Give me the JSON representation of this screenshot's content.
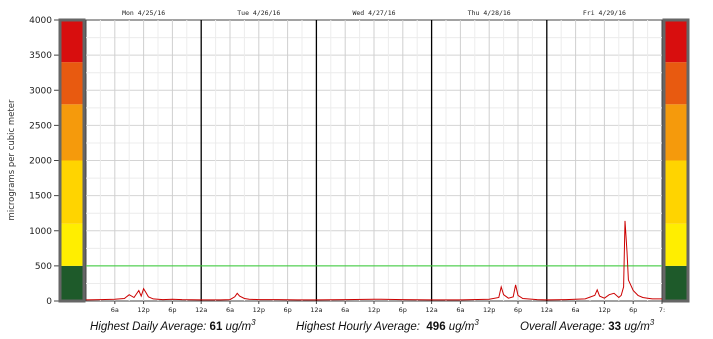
{
  "chart_data": {
    "type": "line",
    "ylabel": "micrograms per cubic meter",
    "ylim": [
      0,
      4000
    ],
    "yticks": [
      0,
      500,
      1000,
      1500,
      2000,
      2500,
      3000,
      3500,
      4000
    ],
    "xlim_hours": [
      0,
      120
    ],
    "days": [
      "Mon 4/25/16",
      "Tue 4/26/16",
      "Wed 4/27/16",
      "Thu 4/28/16",
      "Fri 4/29/16"
    ],
    "x_tick_labels": [
      "6a",
      "12p",
      "6p",
      "12a",
      "6a",
      "12p",
      "6p",
      "12a",
      "6a",
      "12p",
      "6p",
      "12a",
      "6a",
      "12p",
      "6p",
      "12a",
      "6a",
      "12p",
      "6p",
      "7:"
    ],
    "threshold": {
      "value": 500,
      "color": "#33cc33"
    },
    "color_scale": [
      {
        "from": 0,
        "to": 500,
        "color": "#1e5a2a"
      },
      {
        "from": 500,
        "to": 1100,
        "color": "#ffee00"
      },
      {
        "from": 1100,
        "to": 2000,
        "color": "#ffd400"
      },
      {
        "from": 2000,
        "to": 2800,
        "color": "#f59a0c"
      },
      {
        "from": 2800,
        "to": 3400,
        "color": "#e85a10"
      },
      {
        "from": 3400,
        "to": 4000,
        "color": "#d80e0e"
      }
    ],
    "series": [
      {
        "color": "#cc0000",
        "x": [
          0,
          3,
          6,
          8,
          9,
          10,
          11,
          11.5,
          12,
          12.5,
          13,
          14,
          15,
          16,
          18,
          20,
          22,
          24,
          28,
          30,
          31,
          31.5,
          32,
          33,
          34,
          36,
          40,
          44,
          48,
          54,
          60,
          66,
          72,
          78,
          84,
          86,
          86.5,
          87,
          88,
          89,
          89.5,
          90,
          91,
          92,
          94,
          96,
          100,
          104,
          106,
          106.5,
          107,
          108,
          109,
          110,
          111,
          111.5,
          112,
          112.3,
          112.7,
          113,
          114,
          115,
          116,
          117,
          118,
          120
        ],
        "y": [
          15,
          20,
          25,
          35,
          90,
          50,
          150,
          70,
          175,
          120,
          60,
          30,
          25,
          20,
          25,
          20,
          18,
          15,
          15,
          20,
          60,
          110,
          70,
          35,
          25,
          20,
          20,
          15,
          15,
          20,
          25,
          20,
          15,
          15,
          25,
          50,
          200,
          90,
          40,
          60,
          230,
          80,
          35,
          30,
          20,
          15,
          20,
          30,
          80,
          160,
          70,
          40,
          90,
          110,
          50,
          80,
          200,
          1140,
          700,
          300,
          150,
          80,
          50,
          40,
          30,
          30
        ]
      }
    ]
  },
  "stats": {
    "daily_label": "Highest Daily Average:",
    "daily_value": "61",
    "hourly_label": "Highest Hourly Average:",
    "hourly_value": "496",
    "overall_label": "Overall Average:",
    "overall_value": "33",
    "unit": "ug/m",
    "unit_sup": "3"
  }
}
